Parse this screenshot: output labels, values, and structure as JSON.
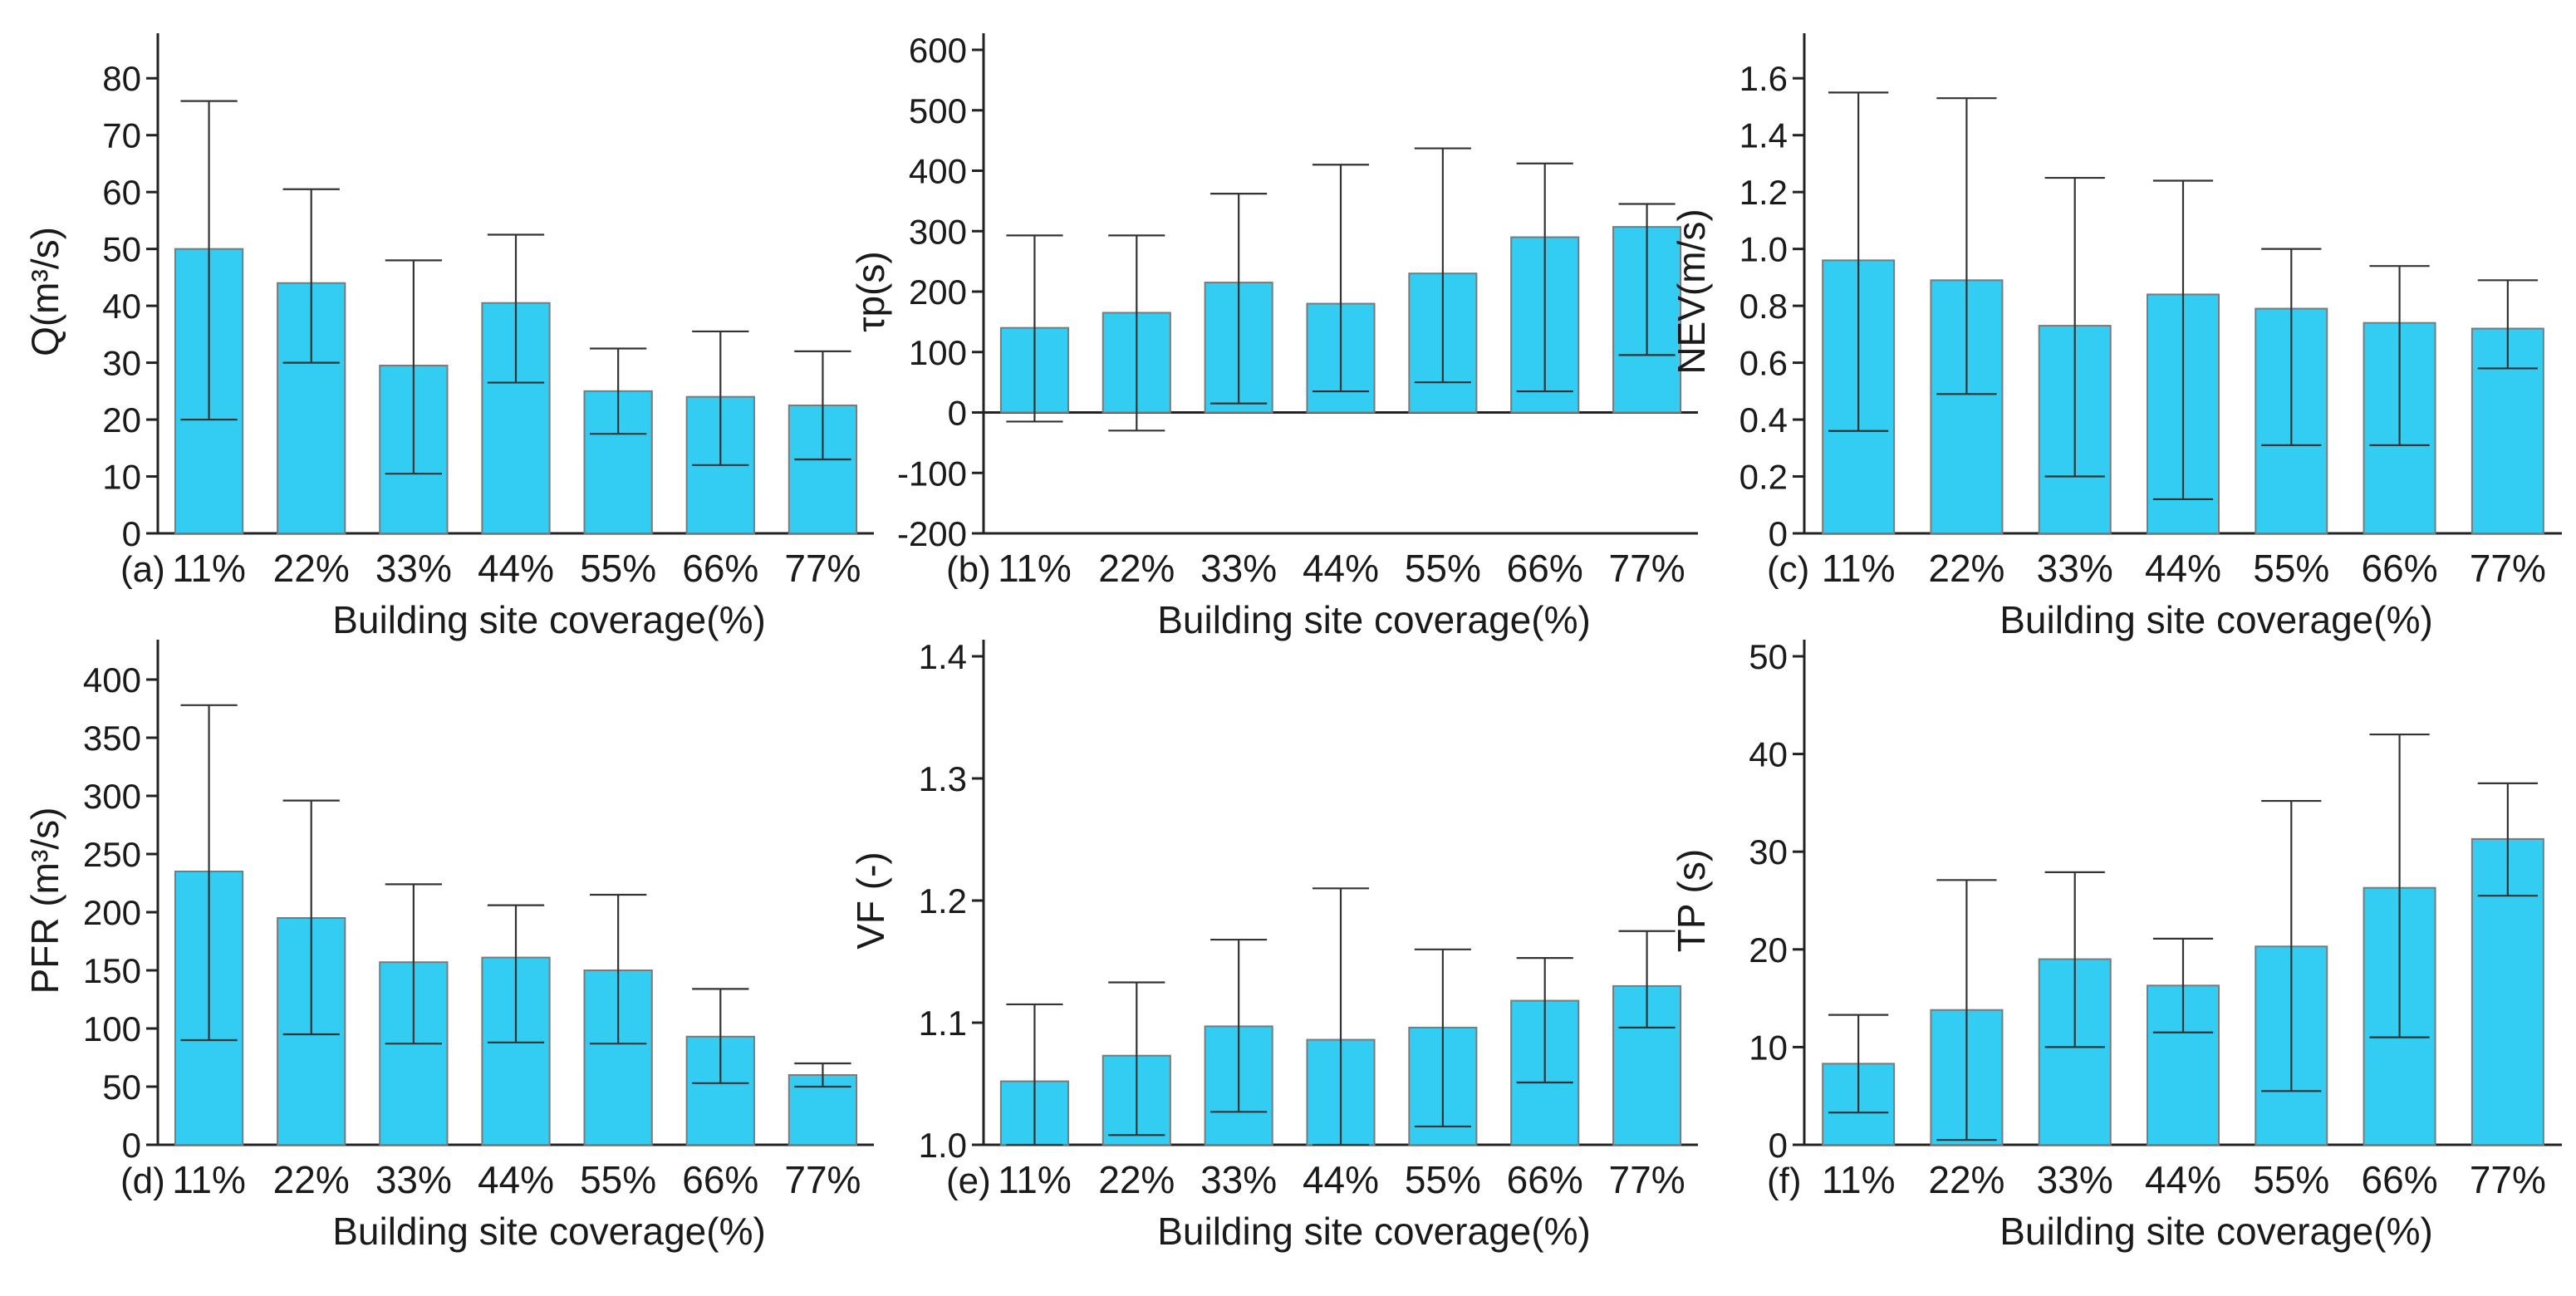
{
  "figure": {
    "bar_color": "#33ccf2",
    "x_categories": [
      "11%",
      "22%",
      "33%",
      "44%",
      "55%",
      "66%",
      "77%"
    ]
  },
  "chart_data": [
    {
      "type": "bar",
      "panel_label": "(a)",
      "ylabel": "Q(m³/s)",
      "xlabel": "Building site coverage(%)",
      "categories": [
        "11%",
        "22%",
        "33%",
        "44%",
        "55%",
        "66%",
        "77%"
      ],
      "values": [
        50,
        44,
        29.5,
        40.5,
        25,
        24,
        22.5
      ],
      "error_low": [
        20,
        30,
        10.5,
        26.5,
        17.5,
        12,
        13
      ],
      "error_high": [
        76,
        60.5,
        48,
        52.5,
        32.5,
        35.5,
        32
      ],
      "ylim": [
        0,
        85
      ],
      "yticks": [
        0,
        10,
        20,
        30,
        40,
        50,
        60,
        70,
        80
      ]
    },
    {
      "type": "bar",
      "panel_label": "(b)",
      "ylabel": "τp(s)",
      "xlabel": "Building site coverage(%)",
      "categories": [
        "11%",
        "22%",
        "33%",
        "44%",
        "55%",
        "66%",
        "77%"
      ],
      "values": [
        140,
        165,
        215,
        180,
        230,
        290,
        307
      ],
      "error_low": [
        -15,
        -30,
        15,
        35,
        50,
        35,
        95
      ],
      "error_high": [
        293,
        293,
        362,
        410,
        437,
        412,
        345
      ],
      "ylim": [
        -200,
        600
      ],
      "yticks": [
        -200,
        -100,
        0,
        100,
        200,
        300,
        400,
        500,
        600
      ]
    },
    {
      "type": "bar",
      "panel_label": "(c)",
      "ylabel": "NEV(m/s)",
      "xlabel": "Building site coverage(%)",
      "categories": [
        "11%",
        "22%",
        "33%",
        "44%",
        "55%",
        "66%",
        "77%"
      ],
      "values": [
        0.96,
        0.89,
        0.73,
        0.84,
        0.79,
        0.74,
        0.72
      ],
      "error_low": [
        0.36,
        0.49,
        0.2,
        0.12,
        0.31,
        0.31,
        0.58
      ],
      "error_high": [
        1.55,
        1.53,
        1.25,
        1.24,
        1.0,
        0.94,
        0.89
      ],
      "ylim": [
        0,
        1.7
      ],
      "yticks": [
        "0",
        "0.2",
        "0.4",
        "0.6",
        "0.8",
        "1.0",
        "1.2",
        "1.4",
        "1.6"
      ]
    },
    {
      "type": "bar",
      "panel_label": "(d)",
      "ylabel": "PFR (m³/s)",
      "xlabel": "Building site coverage(%)",
      "categories": [
        "11%",
        "22%",
        "33%",
        "44%",
        "55%",
        "66%",
        "77%"
      ],
      "values": [
        235,
        195,
        157,
        161,
        150,
        93,
        60
      ],
      "error_low": [
        90,
        95,
        87,
        88,
        87,
        53,
        50
      ],
      "error_high": [
        378,
        296,
        224,
        206,
        215,
        134,
        70
      ],
      "ylim": [
        0,
        420
      ],
      "yticks": [
        0,
        50,
        100,
        150,
        200,
        250,
        300,
        350,
        400
      ]
    },
    {
      "type": "bar",
      "panel_label": "(e)",
      "ylabel": "VF (-)",
      "xlabel": "Building site coverage(%)",
      "categories": [
        "11%",
        "22%",
        "33%",
        "44%",
        "55%",
        "66%",
        "77%"
      ],
      "values": [
        1.052,
        1.073,
        1.097,
        1.086,
        1.096,
        1.118,
        1.13
      ],
      "error_low": [
        1.0,
        1.008,
        1.027,
        1.0,
        1.015,
        1.051,
        1.096
      ],
      "error_high": [
        1.115,
        1.133,
        1.168,
        1.21,
        1.16,
        1.153,
        1.175
      ],
      "ylim": [
        1.0,
        1.4
      ],
      "yticks": [
        "1.0",
        "1.1",
        "1.2",
        "1.3",
        "1.4"
      ]
    },
    {
      "type": "bar",
      "panel_label": "(f)",
      "ylabel": "TP (s)",
      "xlabel": "Building site coverage(%)",
      "categories": [
        "11%",
        "22%",
        "33%",
        "44%",
        "55%",
        "66%",
        "77%"
      ],
      "values": [
        8.3,
        13.8,
        19,
        16.3,
        20.3,
        26.3,
        31.3
      ],
      "error_low": [
        3.3,
        0.5,
        10,
        11.5,
        5.5,
        11,
        25.5
      ],
      "error_high": [
        13.3,
        27.1,
        27.9,
        21.1,
        35.2,
        42,
        37
      ],
      "ylim": [
        0,
        50
      ],
      "yticks": [
        0,
        10,
        20,
        30,
        40,
        50
      ]
    }
  ]
}
